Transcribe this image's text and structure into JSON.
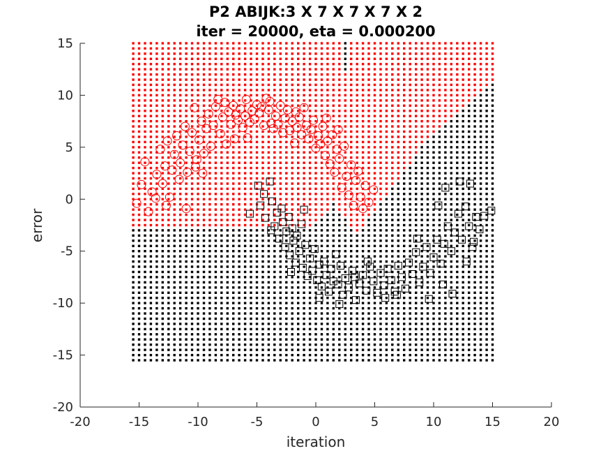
{
  "chart_data": {
    "type": "scatter",
    "title": "P2 ABIJK:3 X 7 X 7 X 7 X 2",
    "subtitle": "iter = 20000, eta = 0.000200",
    "xlabel": "iteration",
    "ylabel": "error",
    "xlim": [
      -20,
      20
    ],
    "ylim": [
      -20,
      15
    ],
    "xticks": [
      -20,
      -15,
      -10,
      -5,
      0,
      5,
      10,
      15,
      20
    ],
    "yticks": [
      -20,
      -15,
      -10,
      -5,
      0,
      5,
      10,
      15
    ],
    "grid": false,
    "colors": {
      "class_red": "#ff0000",
      "class_black": "#000000"
    },
    "decision_grid": {
      "x_range": [
        -15.5,
        15
      ],
      "y_range": [
        -15.5,
        15
      ],
      "step": 0.5,
      "region_description_points": {
        "red_lower_boundary_left": [
          [
            -15.5,
            -3
          ],
          [
            -0.5,
            -3
          ],
          [
            1.5,
            -0.5
          ]
        ],
        "red_notch_apex": [
          3.5,
          -3.5
        ],
        "red_upper_boundary_right": [
          [
            3.5,
            -3.5
          ],
          [
            9,
            5
          ],
          [
            15,
            11
          ]
        ],
        "black_notch_top": [
          2.5,
          15
        ]
      }
    },
    "series": [
      {
        "marker": "circle",
        "color": "#ff0000",
        "points": [
          [
            -15.2,
            -0.4
          ],
          [
            -14.8,
            1.4
          ],
          [
            -14.5,
            3.6
          ],
          [
            -14.2,
            -1.2
          ],
          [
            -13.9,
            0.7
          ],
          [
            -13.5,
            2.4
          ],
          [
            -13.2,
            4.8
          ],
          [
            -13.0,
            1.5
          ],
          [
            -12.8,
            3.2
          ],
          [
            -12.6,
            5.6
          ],
          [
            -12.4,
            0.2
          ],
          [
            -12.2,
            2.8
          ],
          [
            -12.0,
            4.3
          ],
          [
            -11.8,
            6.1
          ],
          [
            -11.6,
            1.9
          ],
          [
            -11.5,
            3.5
          ],
          [
            -11.3,
            5.2
          ],
          [
            -11.1,
            7.0
          ],
          [
            -11.0,
            -0.9
          ],
          [
            -10.9,
            2.6
          ],
          [
            -10.7,
            4.6
          ],
          [
            -10.5,
            6.4
          ],
          [
            -10.3,
            8.8
          ],
          [
            -10.1,
            3.8
          ],
          [
            -9.9,
            5.7
          ],
          [
            -9.7,
            7.5
          ],
          [
            -9.5,
            4.4
          ],
          [
            -9.3,
            6.8
          ],
          [
            -9.1,
            8.2
          ],
          [
            -8.9,
            5.1
          ],
          [
            -8.7,
            7.1
          ],
          [
            -8.5,
            8.9
          ],
          [
            -8.3,
            9.6
          ],
          [
            -8.1,
            6.3
          ],
          [
            -7.9,
            7.9
          ],
          [
            -7.7,
            9.3
          ],
          [
            -7.4,
            8.4
          ],
          [
            -7.2,
            7.2
          ],
          [
            -7.0,
            9.0
          ],
          [
            -6.8,
            8.1
          ],
          [
            -6.6,
            7.6
          ],
          [
            -6.4,
            8.7
          ],
          [
            -6.2,
            6.9
          ],
          [
            -6.0,
            8.0
          ],
          [
            -5.8,
            5.9
          ],
          [
            -5.6,
            7.4
          ],
          [
            -5.4,
            8.5
          ],
          [
            -5.2,
            7.7
          ],
          [
            -5.0,
            9.1
          ],
          [
            -4.8,
            8.3
          ],
          [
            -4.6,
            8.9
          ],
          [
            -4.4,
            7.1
          ],
          [
            -4.2,
            9.7
          ],
          [
            -4.0,
            8.6
          ],
          [
            -3.8,
            7.3
          ],
          [
            -3.6,
            6.8
          ],
          [
            -3.4,
            8.0
          ],
          [
            -3.2,
            7.2
          ],
          [
            -3.0,
            9.0
          ],
          [
            -2.8,
            6.4
          ],
          [
            -2.6,
            7.8
          ],
          [
            -2.4,
            8.6
          ],
          [
            -2.2,
            6.6
          ],
          [
            -2.0,
            7.5
          ],
          [
            -1.8,
            5.4
          ],
          [
            -1.6,
            6.9
          ],
          [
            -1.4,
            7.9
          ],
          [
            -1.2,
            6.2
          ],
          [
            -1.0,
            8.8
          ],
          [
            -0.8,
            7.1
          ],
          [
            -0.6,
            5.8
          ],
          [
            -0.4,
            6.7
          ],
          [
            -0.2,
            7.6
          ],
          [
            0.0,
            4.9
          ],
          [
            0.2,
            6.1
          ],
          [
            0.4,
            5.3
          ],
          [
            0.6,
            7.0
          ],
          [
            0.8,
            4.2
          ],
          [
            1.0,
            5.6
          ],
          [
            1.2,
            3.4
          ],
          [
            1.4,
            6.2
          ],
          [
            1.6,
            2.6
          ],
          [
            1.8,
            4.8
          ],
          [
            2.0,
            3.9
          ],
          [
            2.2,
            1.1
          ],
          [
            2.4,
            5.1
          ],
          [
            2.6,
            2.2
          ],
          [
            2.8,
            0.4
          ],
          [
            3.0,
            3.3
          ],
          [
            3.2,
            -0.6
          ],
          [
            3.4,
            1.8
          ],
          [
            3.6,
            2.7
          ],
          [
            3.8,
            0.2
          ],
          [
            4.0,
            -0.9
          ],
          [
            4.2,
            1.3
          ],
          [
            4.5,
            -0.3
          ],
          [
            4.9,
            0.9
          ],
          [
            -12.7,
            -0.6
          ],
          [
            -13.6,
            0.1
          ],
          [
            -10.2,
            3.1
          ],
          [
            -9.6,
            2.5
          ],
          [
            -7.6,
            5.3
          ],
          [
            -6.9,
            5.8
          ],
          [
            -5.9,
            9.6
          ],
          [
            -3.9,
            9.4
          ],
          [
            -1.7,
            8.4
          ],
          [
            0.9,
            7.8
          ],
          [
            1.9,
            6.7
          ]
        ]
      },
      {
        "marker": "square",
        "color": "#000000",
        "points": [
          [
            -5.6,
            -1.4
          ],
          [
            -4.9,
            1.3
          ],
          [
            -4.7,
            -0.6
          ],
          [
            -4.3,
            -1.8
          ],
          [
            -3.9,
            1.7
          ],
          [
            -3.7,
            -0.2
          ],
          [
            -3.5,
            -2.6
          ],
          [
            -3.3,
            -1.3
          ],
          [
            -3.1,
            -3.8
          ],
          [
            -2.9,
            -0.9
          ],
          [
            -2.8,
            -2.2
          ],
          [
            -2.6,
            -4.6
          ],
          [
            -2.5,
            -3.1
          ],
          [
            -2.3,
            -1.7
          ],
          [
            -2.2,
            -5.4
          ],
          [
            -2.0,
            -2.8
          ],
          [
            -1.9,
            -4.0
          ],
          [
            -1.7,
            -6.1
          ],
          [
            -1.6,
            -3.5
          ],
          [
            -1.4,
            -5.0
          ],
          [
            -1.2,
            -2.4
          ],
          [
            -1.1,
            -6.6
          ],
          [
            -0.9,
            -4.4
          ],
          [
            -0.7,
            -7.4
          ],
          [
            -0.5,
            -5.7
          ],
          [
            -0.3,
            -6.9
          ],
          [
            -0.1,
            -4.8
          ],
          [
            0.1,
            -7.8
          ],
          [
            0.3,
            -6.3
          ],
          [
            0.5,
            -8.4
          ],
          [
            0.7,
            -6.0
          ],
          [
            0.9,
            -7.3
          ],
          [
            1.1,
            -8.9
          ],
          [
            1.3,
            -6.7
          ],
          [
            1.5,
            -7.9
          ],
          [
            1.7,
            -5.3
          ],
          [
            1.9,
            -8.2
          ],
          [
            2.1,
            -6.4
          ],
          [
            2.3,
            -9.2
          ],
          [
            2.5,
            -7.6
          ],
          [
            2.8,
            -8.5
          ],
          [
            3.1,
            -6.9
          ],
          [
            3.4,
            -9.7
          ],
          [
            3.7,
            -8.1
          ],
          [
            4.0,
            -7.3
          ],
          [
            4.3,
            -8.8
          ],
          [
            4.6,
            -6.5
          ],
          [
            4.9,
            -7.9
          ],
          [
            5.2,
            -9.0
          ],
          [
            5.5,
            -7.1
          ],
          [
            5.8,
            -8.3
          ],
          [
            6.1,
            -6.7
          ],
          [
            6.4,
            -7.8
          ],
          [
            6.7,
            -8.9
          ],
          [
            7.0,
            -6.4
          ],
          [
            7.3,
            -7.5
          ],
          [
            7.6,
            -8.6
          ],
          [
            7.9,
            -6.1
          ],
          [
            8.2,
            -7.2
          ],
          [
            8.5,
            -5.1
          ],
          [
            8.8,
            -8.0
          ],
          [
            9.1,
            -6.5
          ],
          [
            9.4,
            -4.6
          ],
          [
            9.7,
            -7.1
          ],
          [
            10.0,
            -5.6
          ],
          [
            10.3,
            -3.9
          ],
          [
            10.6,
            -6.2
          ],
          [
            10.9,
            -4.3
          ],
          [
            11.2,
            -2.6
          ],
          [
            11.5,
            -5.0
          ],
          [
            11.8,
            -3.2
          ],
          [
            12.1,
            -1.4
          ],
          [
            12.4,
            -3.9
          ],
          [
            12.7,
            -0.7
          ],
          [
            13.0,
            -2.6
          ],
          [
            13.3,
            -4.6
          ],
          [
            13.6,
            -1.7
          ],
          [
            13.9,
            -2.9
          ],
          [
            14.3,
            -1.6
          ],
          [
            14.9,
            -1.1
          ],
          [
            10.4,
            -0.6
          ],
          [
            11.0,
            1.1
          ],
          [
            12.2,
            1.7
          ],
          [
            13.1,
            1.5
          ],
          [
            9.6,
            -9.6
          ],
          [
            11.6,
            -9.1
          ],
          [
            2.0,
            -10.1
          ],
          [
            0.3,
            -9.5
          ],
          [
            -1.0,
            -1.0
          ],
          [
            -4.4,
            0.5
          ],
          [
            -3.8,
            -3.0
          ],
          [
            -2.1,
            -7.0
          ],
          [
            4.4,
            -6.0
          ],
          [
            6.9,
            -9.2
          ],
          [
            8.6,
            -3.8
          ],
          [
            10.8,
            -8.2
          ],
          [
            12.8,
            -6.0
          ],
          [
            13.4,
            -4.1
          ],
          [
            5.9,
            -9.5
          ],
          [
            3.3,
            -7.5
          ]
        ]
      }
    ]
  }
}
